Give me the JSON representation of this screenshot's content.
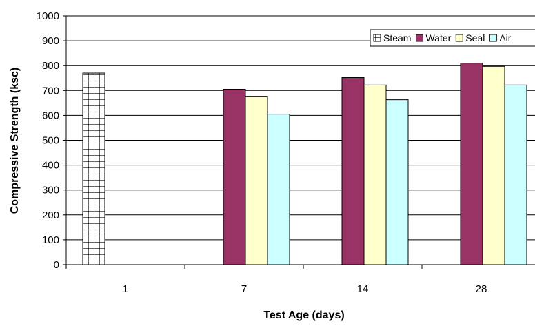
{
  "chart_data": {
    "type": "bar",
    "categories": [
      "1",
      "7",
      "14",
      "28"
    ],
    "series": [
      {
        "name": "Steam",
        "values": [
          770,
          null,
          null,
          null
        ],
        "color": "#ffffff",
        "pattern": "grid"
      },
      {
        "name": "Water",
        "values": [
          null,
          705,
          752,
          810
        ],
        "color": "#993366"
      },
      {
        "name": "Seal",
        "values": [
          null,
          675,
          722,
          797
        ],
        "color": "#ffffcc"
      },
      {
        "name": "Air",
        "values": [
          null,
          605,
          663,
          722
        ],
        "color": "#ccffff"
      }
    ],
    "title": "",
    "xlabel": "Test Age (days)",
    "ylabel": "Compressive Strength (ksc)",
    "ylim": [
      0,
      1000
    ],
    "yticks": [
      0,
      100,
      200,
      300,
      400,
      500,
      600,
      700,
      800,
      900,
      1000
    ],
    "grid": true,
    "legend_position": "top-right"
  }
}
